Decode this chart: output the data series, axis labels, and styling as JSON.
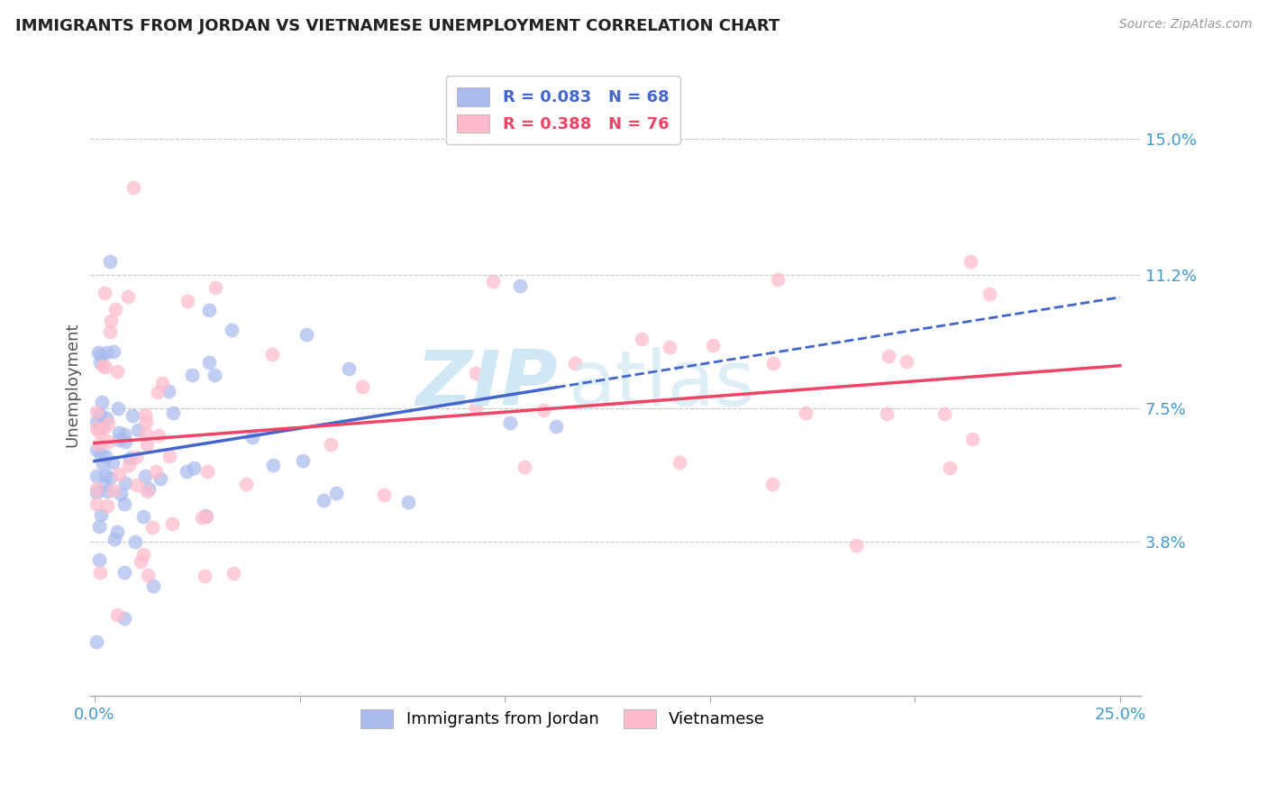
{
  "title": "IMMIGRANTS FROM JORDAN VS VIETNAMESE UNEMPLOYMENT CORRELATION CHART",
  "source": "Source: ZipAtlas.com",
  "ylabel": "Unemployment",
  "xlim": [
    -0.001,
    0.255
  ],
  "ylim": [
    -0.005,
    0.168
  ],
  "ytick_positions": [
    0.038,
    0.075,
    0.112,
    0.15
  ],
  "yticklabels": [
    "3.8%",
    "7.5%",
    "11.2%",
    "15.0%"
  ],
  "xtick_positions": [
    0.0,
    0.05,
    0.1,
    0.15,
    0.2,
    0.25
  ],
  "xticklabels": [
    "0.0%",
    "",
    "",
    "",
    "",
    "25.0%"
  ],
  "grid_color": "#c8c8c8",
  "bg_color": "#ffffff",
  "series1_label": "Immigrants from Jordan",
  "series1_dot_color": "#aabbee",
  "series1_line_color": "#4466cc",
  "series1_R": 0.083,
  "series1_N": 68,
  "series2_label": "Vietnamese",
  "series2_dot_color": "#ffbbcc",
  "series2_line_color": "#ee4466",
  "series2_R": 0.388,
  "series2_N": 76,
  "title_fontsize": 13,
  "tick_fontsize": 13,
  "legend_fontsize": 13,
  "watermark_color": "#d0e8f5",
  "jordan_line_x_end": 0.05,
  "jordan_line_intercept": 0.058,
  "jordan_line_slope": 0.24,
  "viet_line_intercept": 0.05,
  "viet_line_slope": 0.32
}
